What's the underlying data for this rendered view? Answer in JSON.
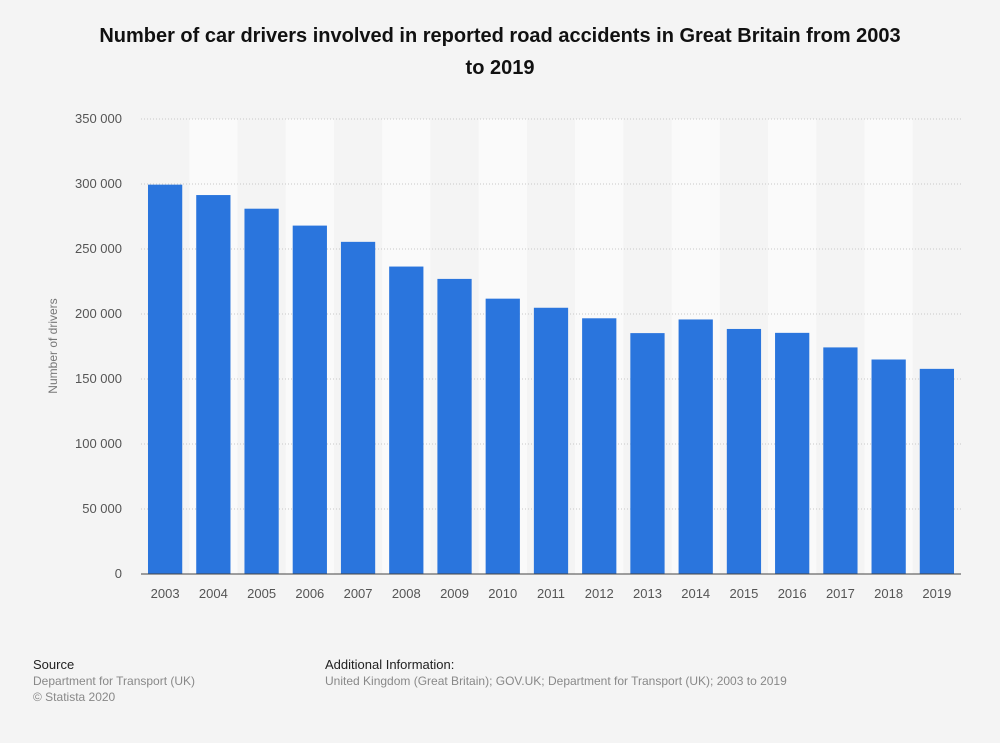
{
  "title_line1": "Number of car drivers involved in reported road accidents in Great Britain from 2003",
  "title_line2": "to 2019",
  "chart_data": {
    "type": "bar",
    "title": "Number of car drivers involved in reported road accidents in Great Britain from 2003 to 2019",
    "xlabel": "",
    "ylabel": "Number of drivers",
    "categories": [
      "2003",
      "2004",
      "2005",
      "2006",
      "2007",
      "2008",
      "2009",
      "2010",
      "2011",
      "2012",
      "2013",
      "2014",
      "2015",
      "2016",
      "2017",
      "2018",
      "2019"
    ],
    "values": [
      299500,
      291500,
      281000,
      268000,
      255500,
      236500,
      227000,
      211800,
      204800,
      196700,
      185300,
      195800,
      188500,
      185500,
      174300,
      165000,
      157800
    ],
    "ylim": [
      0,
      350000
    ],
    "yticks": [
      0,
      50000,
      100000,
      150000,
      200000,
      250000,
      300000,
      350000
    ],
    "ytick_labels": [
      "0",
      "50 000",
      "100 000",
      "150 000",
      "200 000",
      "250 000",
      "300 000",
      "350 000"
    ],
    "grid": true,
    "bar_color": "#2a75dd"
  },
  "footer": {
    "source_heading": "Source",
    "source_line1": "Department for Transport (UK)",
    "source_line2": "© Statista 2020",
    "info_heading": "Additional Information:",
    "info_text": "United Kingdom (Great Britain); GOV.UK; Department for Transport (UK); 2003 to 2019"
  }
}
